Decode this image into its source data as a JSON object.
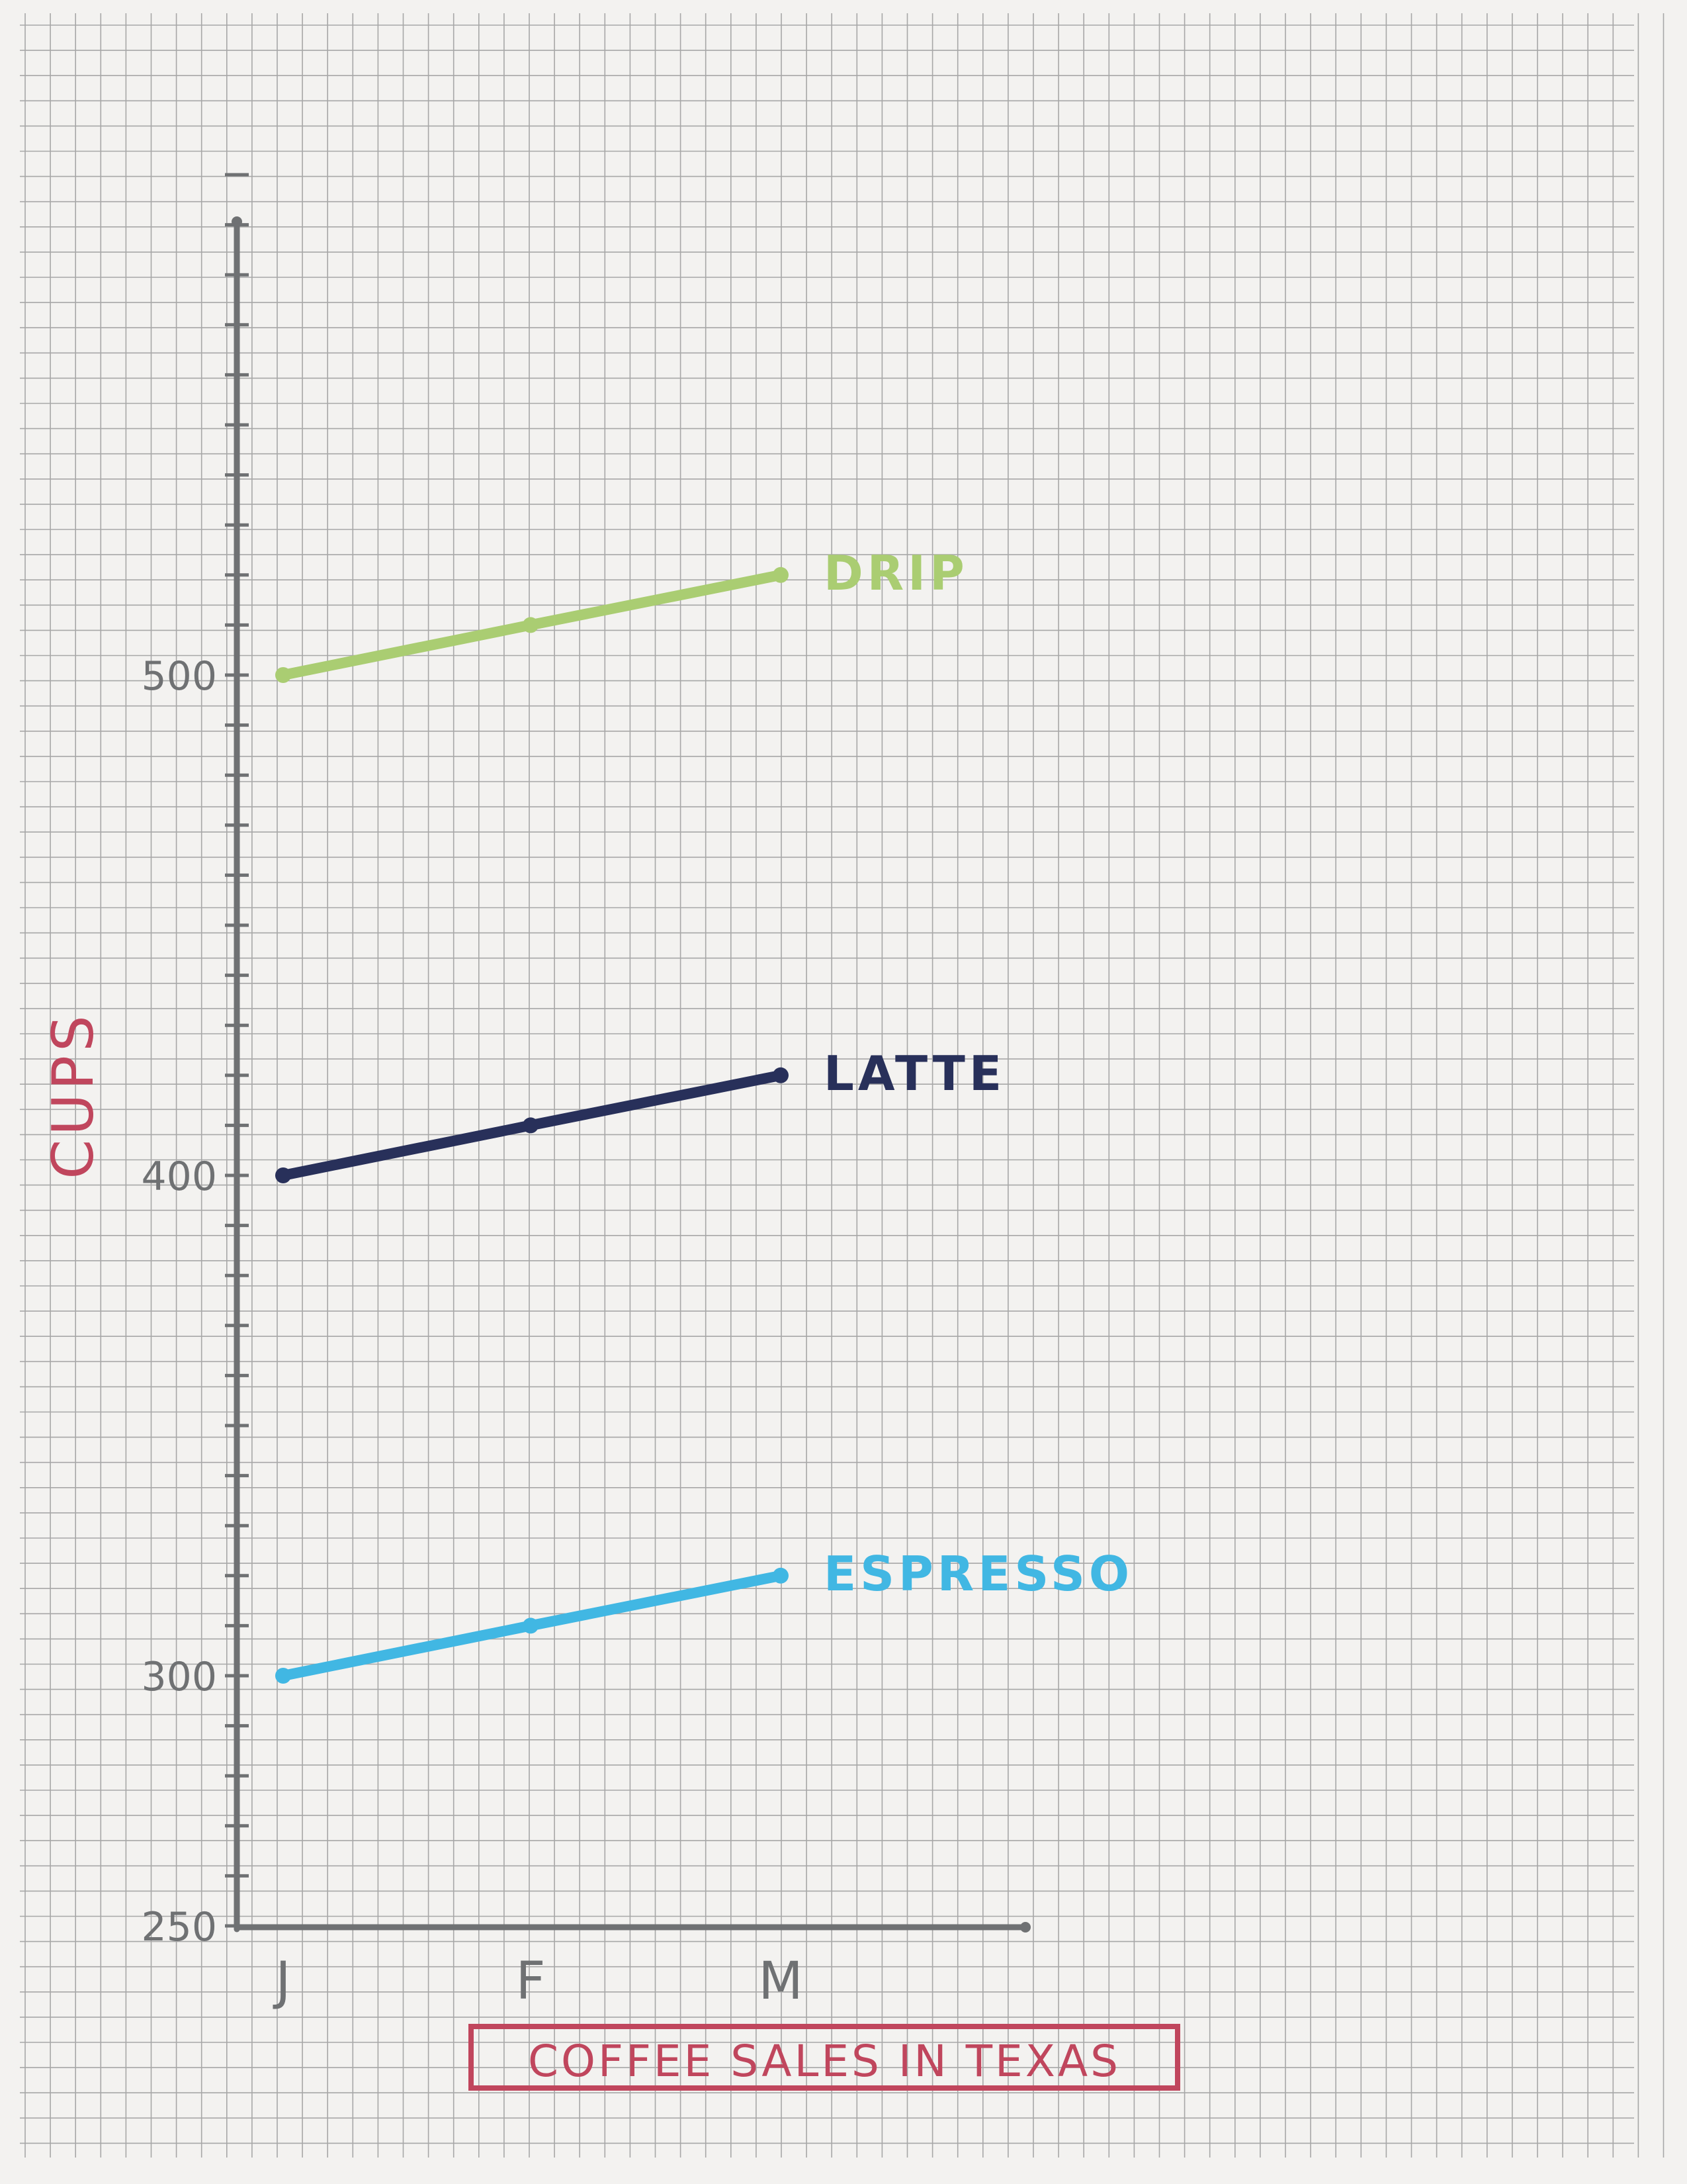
{
  "chart_data": {
    "type": "line",
    "title": "COFFEE SALES IN TEXAS",
    "xlabel": "",
    "ylabel": "CUPS",
    "categories": [
      "J",
      "F",
      "M"
    ],
    "ylim": [
      250,
      600
    ],
    "yticks": [
      250,
      300,
      400,
      500
    ],
    "grid": true,
    "legend": "labels at line ends",
    "series": [
      {
        "name": "DRIP",
        "values": [
          500,
          510,
          520
        ],
        "color": "#aacd72"
      },
      {
        "name": "LATTE",
        "values": [
          400,
          410,
          420
        ],
        "color": "#28305a"
      },
      {
        "name": "ESPRESSO",
        "values": [
          300,
          310,
          320
        ],
        "color": "#41b7e3"
      }
    ],
    "colors": {
      "axis": "#6f7173",
      "title": "#c0465d",
      "ylabel": "#c0465d",
      "grid": "#a7a7a7"
    }
  }
}
